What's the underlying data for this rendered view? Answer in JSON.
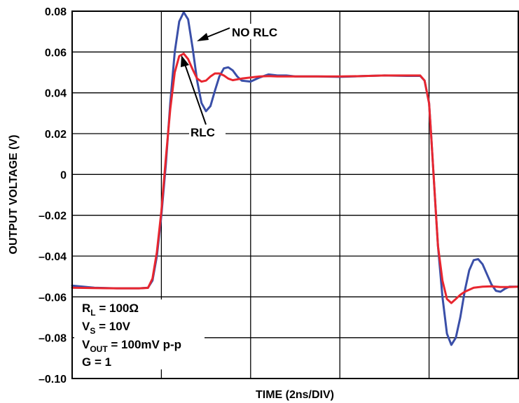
{
  "chart_data": {
    "type": "line",
    "title": "",
    "xlabel": "TIME (2ns/DIV)",
    "ylabel": "OUTPUT VOLTAGE (V)",
    "ylim": [
      -0.1,
      0.08
    ],
    "xlim": [
      0,
      10
    ],
    "grid": true,
    "y_ticks": [
      "0.08",
      "0.06",
      "0.04",
      "0.02",
      "0",
      "–0.02",
      "–0.04",
      "–0.06",
      "–0.08",
      "–0.10"
    ],
    "y_tick_values": [
      0.08,
      0.06,
      0.04,
      0.02,
      0,
      -0.02,
      -0.04,
      -0.06,
      -0.08,
      -0.1
    ],
    "x_tick_values": [
      0,
      2,
      4,
      6,
      8,
      10
    ],
    "x_unit_note": "x in divisions of 2ns",
    "series": [
      {
        "name": "NO RLC",
        "color": "#3a4fa8",
        "x": [
          0,
          0.5,
          1,
          1.5,
          1.7,
          1.8,
          1.9,
          2.0,
          2.1,
          2.2,
          2.3,
          2.4,
          2.5,
          2.6,
          2.7,
          2.8,
          2.9,
          3.0,
          3.1,
          3.2,
          3.3,
          3.4,
          3.5,
          3.6,
          3.7,
          3.8,
          4.0,
          4.2,
          4.4,
          4.6,
          4.8,
          5.0,
          5.5,
          6.0,
          6.5,
          7.0,
          7.5,
          7.8,
          7.9,
          8.0,
          8.05,
          8.1,
          8.15,
          8.2,
          8.3,
          8.4,
          8.5,
          8.6,
          8.7,
          8.8,
          8.9,
          9.0,
          9.1,
          9.2,
          9.3,
          9.4,
          9.5,
          9.6,
          9.7,
          9.8,
          10.0
        ],
        "y": [
          -0.0545,
          -0.0555,
          -0.0558,
          -0.0558,
          -0.0555,
          -0.052,
          -0.04,
          -0.02,
          0.005,
          0.035,
          0.06,
          0.075,
          0.0795,
          0.076,
          0.062,
          0.046,
          0.035,
          0.031,
          0.0335,
          0.041,
          0.048,
          0.052,
          0.0525,
          0.051,
          0.048,
          0.046,
          0.0455,
          0.0475,
          0.049,
          0.0485,
          0.0485,
          0.048,
          0.048,
          0.0478,
          0.0482,
          0.0485,
          0.0483,
          0.0483,
          0.046,
          0.035,
          0.018,
          0.0,
          -0.018,
          -0.035,
          -0.06,
          -0.078,
          -0.0835,
          -0.08,
          -0.07,
          -0.057,
          -0.047,
          -0.042,
          -0.0415,
          -0.044,
          -0.049,
          -0.054,
          -0.057,
          -0.0575,
          -0.056,
          -0.055,
          -0.055
        ]
      },
      {
        "name": "RLC",
        "color": "#e8262f",
        "x": [
          0,
          0.5,
          1,
          1.5,
          1.7,
          1.8,
          1.9,
          2.0,
          2.1,
          2.2,
          2.3,
          2.4,
          2.5,
          2.6,
          2.7,
          2.8,
          2.9,
          3.0,
          3.1,
          3.2,
          3.3,
          3.4,
          3.5,
          3.6,
          3.8,
          4.0,
          4.2,
          4.4,
          4.6,
          4.8,
          5.0,
          5.5,
          6.0,
          6.5,
          7.0,
          7.5,
          7.8,
          7.9,
          8.0,
          8.05,
          8.1,
          8.15,
          8.2,
          8.3,
          8.4,
          8.5,
          8.6,
          8.7,
          8.8,
          9.0,
          9.2,
          9.4,
          9.6,
          9.8,
          10.0
        ],
        "y": [
          -0.0555,
          -0.0557,
          -0.0558,
          -0.0558,
          -0.0556,
          -0.051,
          -0.038,
          -0.018,
          0.008,
          0.032,
          0.05,
          0.058,
          0.0592,
          0.0565,
          0.0515,
          0.047,
          0.0455,
          0.046,
          0.048,
          0.0495,
          0.0495,
          0.0485,
          0.047,
          0.0462,
          0.047,
          0.0475,
          0.048,
          0.0482,
          0.048,
          0.048,
          0.048,
          0.048,
          0.048,
          0.0482,
          0.0485,
          0.0485,
          0.0485,
          0.046,
          0.035,
          0.018,
          0.0,
          -0.018,
          -0.035,
          -0.052,
          -0.061,
          -0.063,
          -0.061,
          -0.059,
          -0.0575,
          -0.0555,
          -0.055,
          -0.0548,
          -0.0552,
          -0.0552,
          -0.055
        ]
      }
    ],
    "annotations": {
      "no_rlc": "NO RLC",
      "rlc": "RLC"
    },
    "conditions": {
      "rl_main": "R",
      "rl_sub": "L",
      "rl_val": " = 100Ω",
      "vs_main": "V",
      "vs_sub": "S",
      "vs_val": " = 10V",
      "vout_main": "V",
      "vout_sub": "OUT",
      "vout_val": " = 100mV p-p",
      "g_line": "G = 1"
    }
  }
}
